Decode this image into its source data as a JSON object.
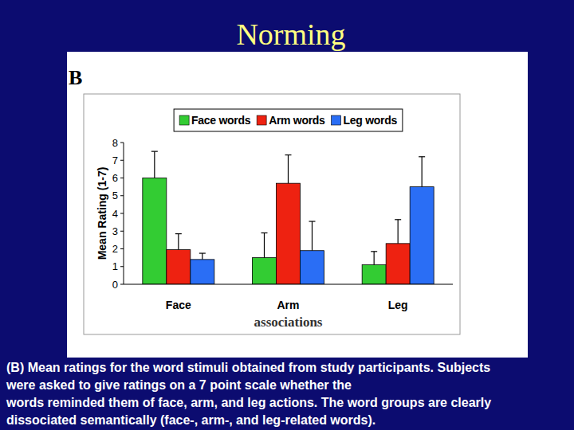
{
  "slide": {
    "title": "Norming",
    "panel_label": "B",
    "caption": [
      "(B) Mean ratings for the word stimuli obtained from study participants. Subjects",
      "were asked to give ratings on a 7 point scale whether the",
      "words reminded them of face, arm, and leg actions. The word groups are clearly",
      "dissociated semantically (face-, arm-, and leg-related words)."
    ]
  },
  "chart_data": {
    "type": "bar",
    "x_label": "associations",
    "y_label": "Mean Rating (1-7)",
    "categories": [
      "Face",
      "Arm",
      "Leg"
    ],
    "series": [
      {
        "name": "Face words",
        "color": "#33cc33",
        "values": [
          6.0,
          1.5,
          1.1
        ],
        "errors": [
          1.5,
          1.4,
          0.75
        ]
      },
      {
        "name": "Arm words",
        "color": "#ee2211",
        "values": [
          1.95,
          5.7,
          2.3
        ],
        "errors": [
          0.9,
          1.6,
          1.35
        ]
      },
      {
        "name": "Leg words",
        "color": "#2a6ef5",
        "values": [
          1.4,
          1.9,
          5.5
        ],
        "errors": [
          0.35,
          1.65,
          1.7
        ]
      }
    ],
    "ylim": [
      0,
      8
    ],
    "yticks": [
      0,
      1,
      2,
      3,
      4,
      5,
      6,
      7,
      8
    ],
    "grid": false,
    "legend": "top"
  }
}
